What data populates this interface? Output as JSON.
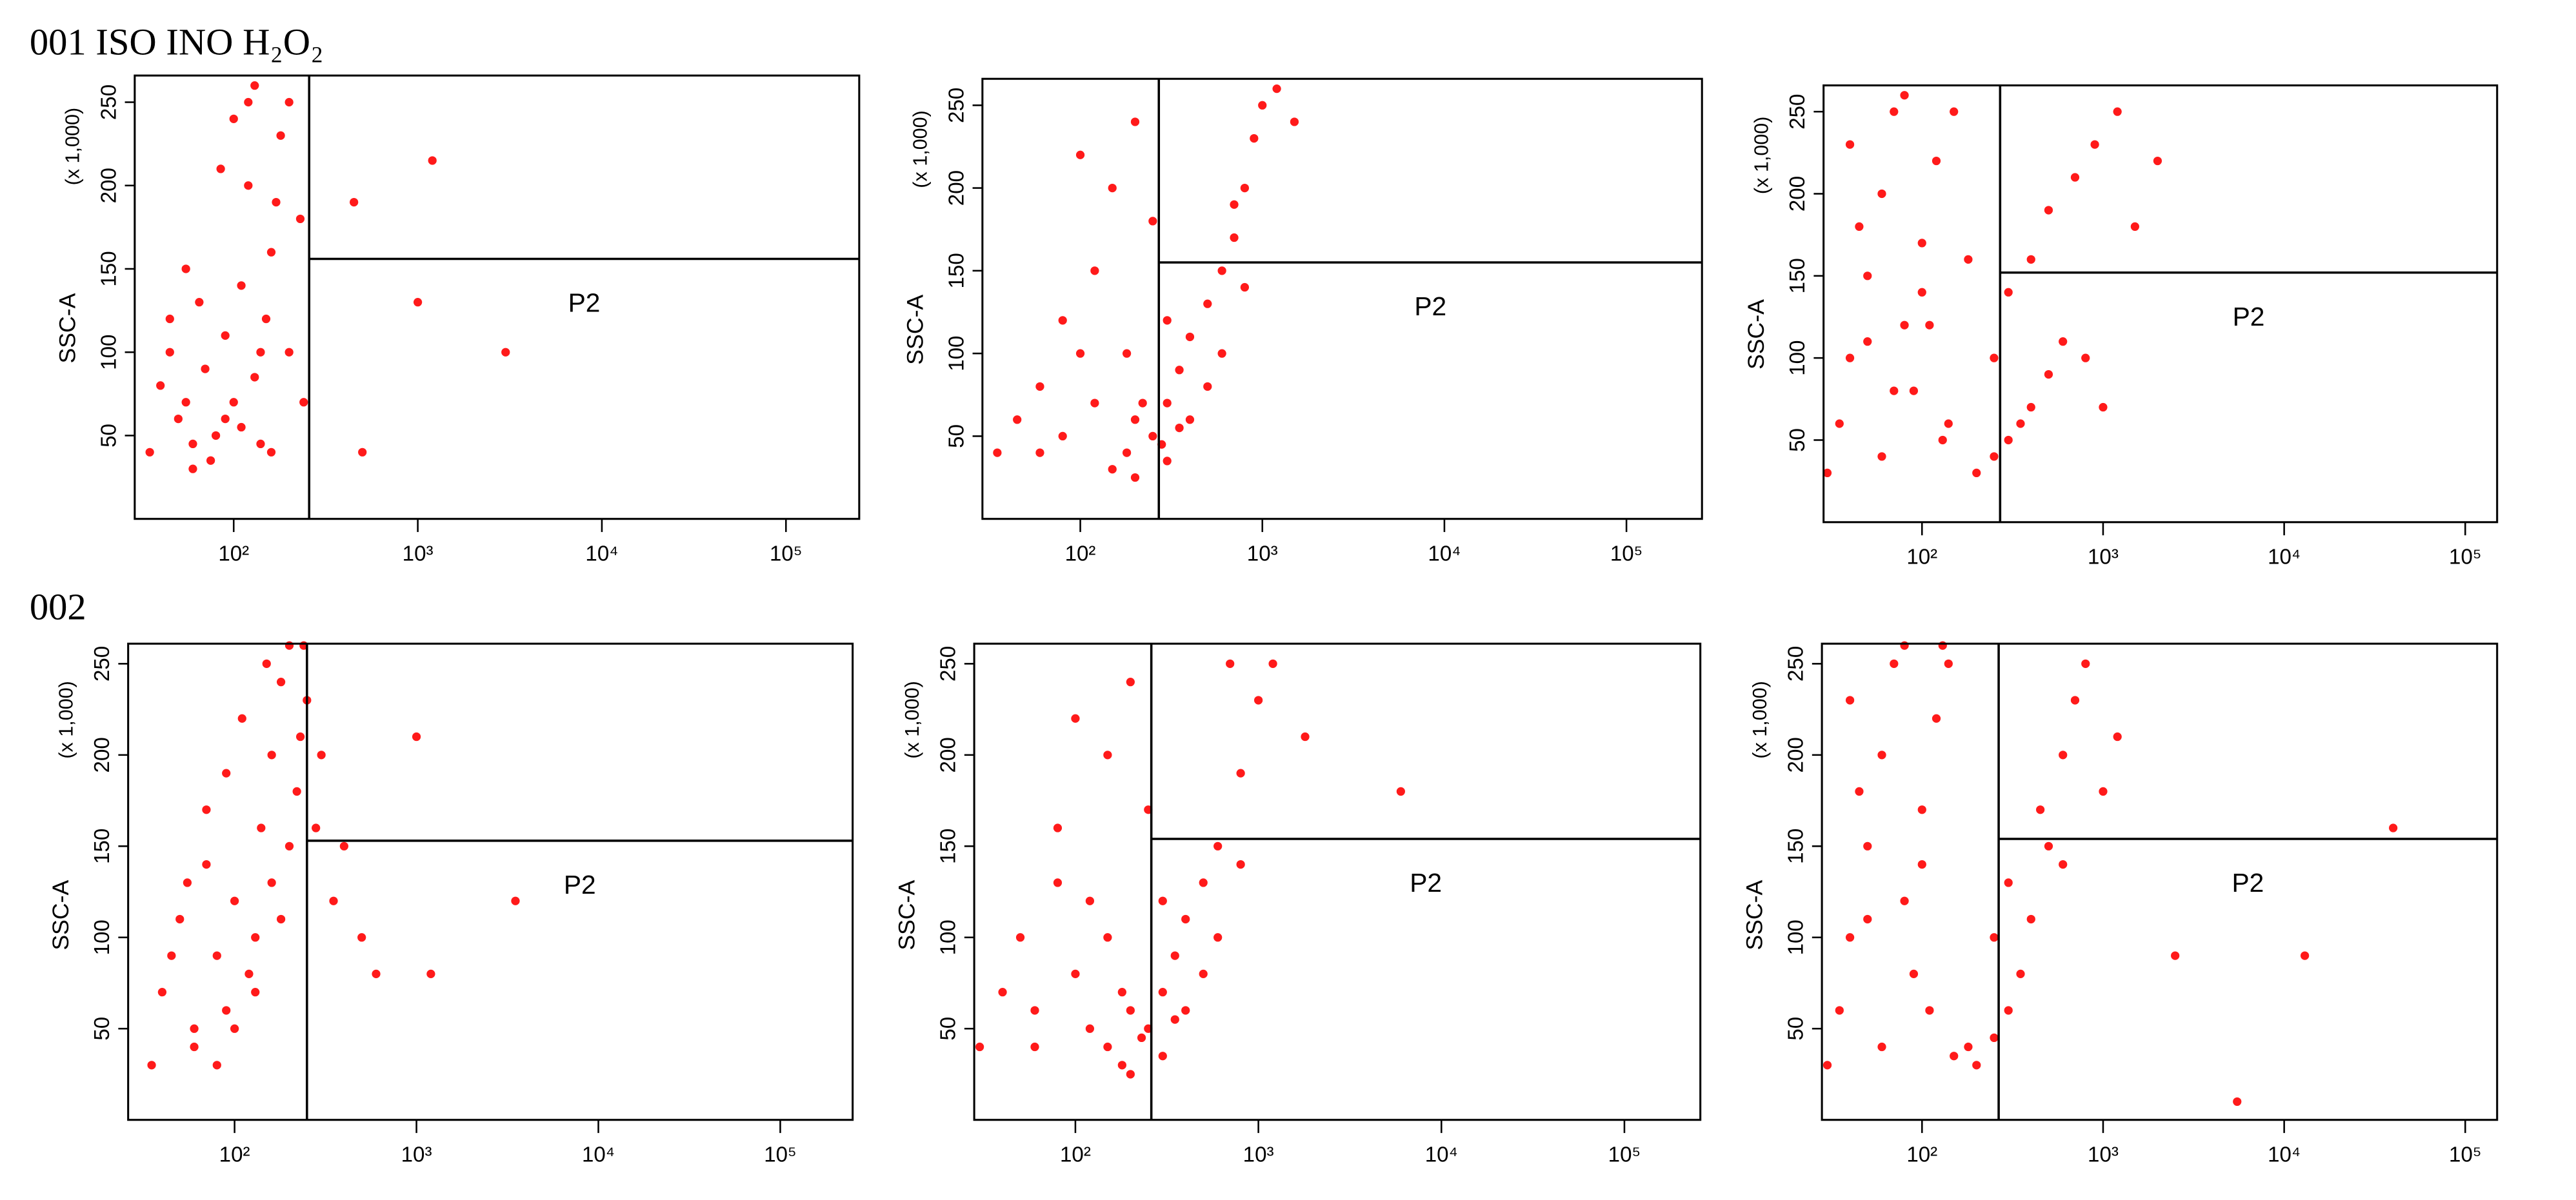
{
  "row_labels": [
    "001 ISO INO H₂O₂",
    "002"
  ],
  "chart_data": [
    {
      "type": "scatter",
      "ylabel": "SSC-A",
      "yunit": "(x 1,000)",
      "log_x": true,
      "color": "#ff1a1a",
      "xlim": [
        29,
        250000
      ],
      "ylim": [
        0,
        266
      ],
      "xticks": [
        {
          "value": 100,
          "label": "10²"
        },
        {
          "value": 1000,
          "label": "10³"
        },
        {
          "value": 10000,
          "label": "10⁴"
        },
        {
          "value": 100000,
          "label": "10⁵"
        }
      ],
      "yticks": [
        50,
        100,
        150,
        200,
        250
      ],
      "gate": {
        "x": 257,
        "y": 156,
        "label": "P2"
      },
      "series": [
        {
          "x": [
            35,
            40,
            45,
            50,
            55,
            60,
            70,
            80,
            90,
            100,
            110,
            120,
            140,
            160,
            180,
            200,
            230,
            60,
            75,
            90,
            110,
            130,
            150,
            170,
            45,
            55,
            65,
            85,
            100,
            120,
            140,
            200,
            240,
            160,
            130,
            450,
            1000,
            1200,
            3000,
            500
          ],
          "values": [
            40,
            80,
            120,
            60,
            150,
            30,
            90,
            50,
            110,
            70,
            140,
            200,
            100,
            160,
            230,
            250,
            180,
            45,
            35,
            60,
            55,
            85,
            120,
            190,
            100,
            70,
            130,
            210,
            240,
            250,
            45,
            100,
            70,
            40,
            260,
            190,
            130,
            215,
            100,
            40
          ]
        }
      ]
    },
    {
      "type": "scatter",
      "ylabel": "SSC-A",
      "yunit": "(x 1,000)",
      "log_x": true,
      "color": "#ff1a1a",
      "xlim": [
        29,
        260000
      ],
      "ylim": [
        0,
        266
      ],
      "xticks": [
        {
          "value": 100,
          "label": "10²"
        },
        {
          "value": 1000,
          "label": "10³"
        },
        {
          "value": 10000,
          "label": "10⁴"
        },
        {
          "value": 100000,
          "label": "10⁵"
        }
      ],
      "yticks": [
        50,
        100,
        150,
        200,
        250
      ],
      "gate": {
        "x": 270,
        "y": 155,
        "label": "P2"
      },
      "series": [
        {
          "x": [
            35,
            45,
            60,
            80,
            100,
            120,
            150,
            180,
            200,
            250,
            300,
            350,
            400,
            500,
            600,
            700,
            800,
            900,
            1000,
            1200,
            150,
            200,
            250,
            300,
            400,
            500,
            120,
            100,
            80,
            60,
            200,
            300,
            600,
            800,
            1500,
            180,
            220,
            280,
            350,
            700
          ],
          "values": [
            40,
            60,
            80,
            50,
            100,
            70,
            30,
            40,
            60,
            50,
            70,
            90,
            110,
            130,
            150,
            170,
            200,
            230,
            250,
            260,
            200,
            240,
            180,
            120,
            60,
            80,
            150,
            220,
            120,
            40,
            25,
            35,
            100,
            140,
            240,
            100,
            70,
            45,
            55,
            190
          ]
        }
      ]
    },
    {
      "type": "scatter",
      "ylabel": "SSC-A",
      "yunit": "(x 1,000)",
      "log_x": true,
      "color": "#ff1a1a",
      "xlim": [
        28.6,
        150000
      ],
      "ylim": [
        0,
        266
      ],
      "xticks": [
        {
          "value": 100,
          "label": "10²"
        },
        {
          "value": 1000,
          "label": "10³"
        },
        {
          "value": 10000,
          "label": "10⁴"
        },
        {
          "value": 100000,
          "label": "10⁵"
        }
      ],
      "yticks": [
        50,
        100,
        150,
        200,
        250
      ],
      "gate": {
        "x": 270,
        "y": 152,
        "label": "P2"
      },
      "series": [
        {
          "x": [
            30,
            35,
            40,
            50,
            60,
            70,
            80,
            90,
            100,
            120,
            140,
            60,
            80,
            100,
            40,
            50,
            200,
            250,
            300,
            350,
            400,
            500,
            600,
            250,
            300,
            400,
            500,
            700,
            900,
            1200,
            1500,
            2000,
            800,
            1000,
            150,
            180,
            70,
            110,
            130,
            45
          ],
          "values": [
            30,
            60,
            100,
            150,
            200,
            250,
            120,
            80,
            170,
            220,
            60,
            40,
            260,
            140,
            230,
            110,
            30,
            40,
            50,
            60,
            70,
            90,
            110,
            100,
            140,
            160,
            190,
            210,
            230,
            250,
            180,
            220,
            100,
            70,
            250,
            160,
            80,
            120,
            50,
            180
          ]
        }
      ]
    },
    {
      "type": "scatter",
      "ylabel": "SSC-A",
      "yunit": "(x 1,000)",
      "log_x": true,
      "color": "#ff1a1a",
      "xlim": [
        26,
        250000
      ],
      "ylim": [
        0,
        261
      ],
      "xticks": [
        {
          "value": 100,
          "label": "10²"
        },
        {
          "value": 1000,
          "label": "10³"
        },
        {
          "value": 10000,
          "label": "10⁴"
        },
        {
          "value": 100000,
          "label": "10⁵"
        }
      ],
      "yticks": [
        50,
        100,
        150,
        200,
        250
      ],
      "gate": {
        "x": 250,
        "y": 153,
        "label": "P2"
      },
      "series": [
        {
          "x": [
            35,
            40,
            50,
            60,
            70,
            80,
            90,
            100,
            120,
            140,
            160,
            180,
            200,
            220,
            250,
            300,
            400,
            500,
            600,
            60,
            80,
            100,
            130,
            160,
            200,
            45,
            55,
            70,
            110,
            150,
            180,
            230,
            280,
            350,
            1000,
            1200,
            3500,
            240,
            90,
            130
          ],
          "values": [
            30,
            70,
            110,
            50,
            140,
            90,
            60,
            120,
            80,
            160,
            200,
            240,
            260,
            180,
            230,
            200,
            150,
            100,
            80,
            40,
            30,
            50,
            100,
            130,
            150,
            90,
            130,
            170,
            220,
            250,
            110,
            210,
            160,
            120,
            210,
            80,
            120,
            260,
            190,
            70
          ]
        }
      ]
    },
    {
      "type": "scatter",
      "ylabel": "SSC-A",
      "yunit": "(x 1,000)",
      "log_x": true,
      "color": "#ff1a1a",
      "xlim": [
        28,
        260000
      ],
      "ylim": [
        0,
        261
      ],
      "xticks": [
        {
          "value": 100,
          "label": "10²"
        },
        {
          "value": 1000,
          "label": "10³"
        },
        {
          "value": 10000,
          "label": "10⁴"
        },
        {
          "value": 100000,
          "label": "10⁵"
        }
      ],
      "yticks": [
        50,
        100,
        150,
        200,
        250
      ],
      "gate": {
        "x": 260,
        "y": 154,
        "label": "P2"
      },
      "series": [
        {
          "x": [
            30,
            40,
            50,
            60,
            80,
            100,
            120,
            150,
            180,
            200,
            250,
            300,
            350,
            400,
            500,
            600,
            800,
            1000,
            1200,
            150,
            200,
            250,
            300,
            400,
            500,
            80,
            100,
            120,
            60,
            200,
            300,
            600,
            800,
            700,
            6000,
            150,
            180,
            230,
            350,
            1800
          ],
          "values": [
            40,
            70,
            100,
            60,
            130,
            80,
            50,
            40,
            30,
            60,
            50,
            70,
            90,
            110,
            130,
            150,
            190,
            230,
            250,
            200,
            240,
            170,
            120,
            60,
            80,
            160,
            220,
            120,
            40,
            25,
            35,
            100,
            140,
            250,
            180,
            100,
            70,
            45,
            55,
            210
          ]
        }
      ]
    },
    {
      "type": "scatter",
      "ylabel": "SSC-A",
      "yunit": "(x 1,000)",
      "log_x": true,
      "color": "#ff1a1a",
      "xlim": [
        28,
        150000
      ],
      "ylim": [
        0,
        261
      ],
      "xticks": [
        {
          "value": 100,
          "label": "10²"
        },
        {
          "value": 1000,
          "label": "10³"
        },
        {
          "value": 10000,
          "label": "10⁴"
        },
        {
          "value": 100000,
          "label": "10⁵"
        }
      ],
      "yticks": [
        50,
        100,
        150,
        200,
        250
      ],
      "gate": {
        "x": 265,
        "y": 154,
        "label": "P2"
      },
      "series": [
        {
          "x": [
            30,
            35,
            40,
            50,
            60,
            70,
            80,
            90,
            100,
            120,
            140,
            60,
            80,
            100,
            40,
            50,
            150,
            180,
            200,
            250,
            300,
            350,
            400,
            500,
            600,
            700,
            800,
            1000,
            1200,
            250,
            300,
            450,
            600,
            2500,
            13000,
            5500,
            40000,
            110,
            130,
            45
          ],
          "values": [
            30,
            60,
            100,
            150,
            200,
            250,
            120,
            80,
            170,
            220,
            250,
            40,
            260,
            140,
            230,
            110,
            35,
            40,
            30,
            45,
            60,
            80,
            110,
            150,
            200,
            230,
            250,
            180,
            210,
            100,
            130,
            170,
            140,
            90,
            90,
            10,
            160,
            60,
            260,
            180
          ]
        }
      ]
    }
  ]
}
